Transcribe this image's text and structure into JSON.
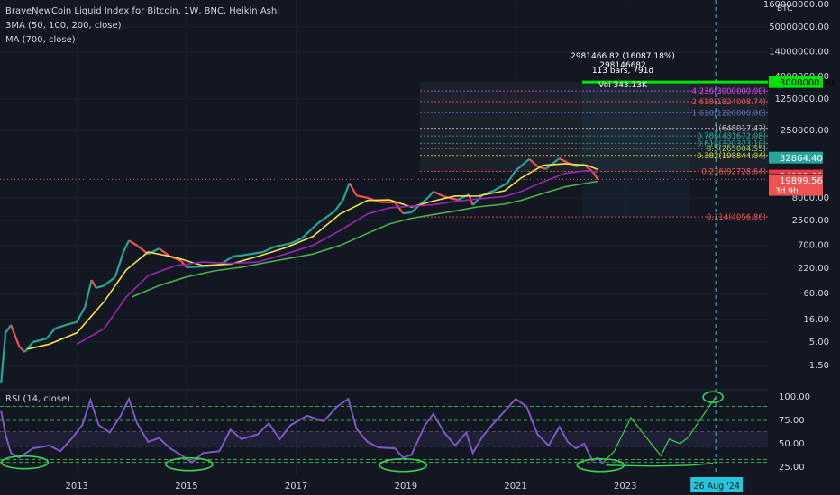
{
  "header": {
    "title": "BraveNewCoin Liquid Index for Bitcoin, 1W, BNC, Heikin Ashi",
    "indicator_3ma": "3MA (50, 100, 200, close)",
    "indicator_ma": "MA (700, close)",
    "currency": "BTC"
  },
  "measure": {
    "line1": "2981466.82 (16087.18%) 298146682",
    "line2": "113 bars, 791d",
    "line3": "Vol 343.13K"
  },
  "colors": {
    "background": "#131722",
    "up": "#ef5350",
    "down": "#26a69a",
    "ma50": "#f2e34b",
    "ma100": "#9c27b0",
    "ma200": "#4caf50",
    "ma700": "#4caf50",
    "rsi": "#7e57c2",
    "target": "#00e600",
    "annotation": "#39d353",
    "date_marker": "#26c6da"
  },
  "chart_data": [
    {
      "type": "line",
      "scale": "log",
      "x_ticks": [
        "2013",
        "2015",
        "2017",
        "2019",
        "2021",
        "2023"
      ],
      "y_ticks": [
        "160000000.00",
        "50000000.00",
        "14000000.00",
        "4000000.00",
        "1250000.00",
        "250000.00",
        "8000.00",
        "2500.00",
        "700.00",
        "220.00",
        "60.00",
        "16.00",
        "5.00",
        "1.50"
      ],
      "price_labels": [
        {
          "text": "3000000.00",
          "value": 3000000,
          "bg": "#00e600",
          "fg": "#000000"
        },
        {
          "text": "32864.40",
          "value": 32864.4,
          "bg": "#26a69a",
          "fg": "#ffffff"
        },
        {
          "text": "28911.50",
          "value": 28911.5,
          "bg": "#131722",
          "fg": "#ffffff"
        },
        {
          "text": "24958.60",
          "value": 24958.6,
          "bg": "#f23645",
          "fg": "#ffffff"
        },
        {
          "text": "20546.09",
          "value": 20546.09,
          "bg": "#131722",
          "fg": "#ffffff"
        },
        {
          "text": "19899.56",
          "value": 19899.56,
          "bg": "#ef5350",
          "fg": "#ffffff",
          "sub": "3d 9h"
        }
      ],
      "fib_levels": [
        {
          "label": "4.236(3000000.00)",
          "value": 1900000
        },
        {
          "label": "2.618(1824008.74)",
          "value": 1100000
        },
        {
          "label": "1.618(1220000.00)",
          "value": 620000
        },
        {
          "label": "1(648017.47)",
          "value": 280000
        },
        {
          "label": "0.786(431672.08)",
          "value": 190000
        },
        {
          "label": "0.618(320373.10)",
          "value": 130000
        },
        {
          "label": "0.5(265004.55)",
          "value": 100000
        },
        {
          "label": "0.382(198844.04)",
          "value": 70000
        },
        {
          "label": "0.236(92728.64)",
          "value": 31000
        },
        {
          "label": "0.114(4056.86)",
          "value": 3000
        }
      ],
      "target_price": 3000000,
      "series": [
        {
          "key": "ma50",
          "color": "#f2e34b",
          "points": [
            [
              2012.1,
              3.5
            ],
            [
              2012.5,
              4.5
            ],
            [
              2013.0,
              8
            ],
            [
              2013.5,
              40
            ],
            [
              2013.9,
              200
            ],
            [
              2014.3,
              500
            ],
            [
              2014.8,
              380
            ],
            [
              2015.3,
              250
            ],
            [
              2015.8,
              270
            ],
            [
              2016.3,
              400
            ],
            [
              2016.8,
              620
            ],
            [
              2017.3,
              1100
            ],
            [
              2017.8,
              3500
            ],
            [
              2018.3,
              7000
            ],
            [
              2018.7,
              7200
            ],
            [
              2019.1,
              5000
            ],
            [
              2019.5,
              6800
            ],
            [
              2019.9,
              8800
            ],
            [
              2020.3,
              8700
            ],
            [
              2020.8,
              11500
            ],
            [
              2021.1,
              22000
            ],
            [
              2021.5,
              42000
            ],
            [
              2021.9,
              46000
            ],
            [
              2022.3,
              42000
            ],
            [
              2022.5,
              34000
            ]
          ]
        },
        {
          "key": "ma100",
          "color": "#9c27b0",
          "points": [
            [
              2013.0,
              4.5
            ],
            [
              2013.5,
              10
            ],
            [
              2013.9,
              50
            ],
            [
              2014.3,
              150
            ],
            [
              2014.8,
              250
            ],
            [
              2015.3,
              300
            ],
            [
              2015.8,
              280
            ],
            [
              2016.3,
              300
            ],
            [
              2016.8,
              450
            ],
            [
              2017.3,
              700
            ],
            [
              2017.8,
              1500
            ],
            [
              2018.3,
              3500
            ],
            [
              2018.7,
              4800
            ],
            [
              2019.1,
              5200
            ],
            [
              2019.5,
              5600
            ],
            [
              2019.9,
              6700
            ],
            [
              2020.3,
              7500
            ],
            [
              2020.8,
              8600
            ],
            [
              2021.1,
              11000
            ],
            [
              2021.5,
              18000
            ],
            [
              2021.9,
              28000
            ],
            [
              2022.3,
              32000
            ],
            [
              2022.5,
              30000
            ]
          ]
        },
        {
          "key": "ma200",
          "color": "#4caf50",
          "points": [
            [
              2014.0,
              50
            ],
            [
              2014.5,
              90
            ],
            [
              2015.0,
              140
            ],
            [
              2015.5,
              190
            ],
            [
              2016.0,
              230
            ],
            [
              2016.5,
              300
            ],
            [
              2016.8,
              350
            ],
            [
              2017.3,
              450
            ],
            [
              2017.8,
              700
            ],
            [
              2018.3,
              1300
            ],
            [
              2018.7,
              2100
            ],
            [
              2019.1,
              2800
            ],
            [
              2019.5,
              3400
            ],
            [
              2019.9,
              4100
            ],
            [
              2020.3,
              5000
            ],
            [
              2020.8,
              5800
            ],
            [
              2021.1,
              7000
            ],
            [
              2021.5,
              10000
            ],
            [
              2021.9,
              14000
            ],
            [
              2022.3,
              17000
            ],
            [
              2022.5,
              18500
            ]
          ]
        }
      ],
      "candle_path": [
        [
          2011.62,
          0.6
        ],
        [
          2011.7,
          8
        ],
        [
          2011.8,
          12
        ],
        [
          2011.95,
          4
        ],
        [
          2012.05,
          3
        ],
        [
          2012.2,
          5
        ],
        [
          2012.45,
          6
        ],
        [
          2012.6,
          10
        ],
        [
          2012.8,
          12
        ],
        [
          2013.0,
          14
        ],
        [
          2013.15,
          30
        ],
        [
          2013.27,
          120
        ],
        [
          2013.35,
          80
        ],
        [
          2013.5,
          90
        ],
        [
          2013.7,
          140
        ],
        [
          2013.85,
          500
        ],
        [
          2013.95,
          900
        ],
        [
          2014.1,
          700
        ],
        [
          2014.3,
          450
        ],
        [
          2014.5,
          600
        ],
        [
          2014.7,
          400
        ],
        [
          2014.9,
          320
        ],
        [
          2015.0,
          230
        ],
        [
          2015.3,
          240
        ],
        [
          2015.6,
          260
        ],
        [
          2015.85,
          400
        ],
        [
          2016.0,
          420
        ],
        [
          2016.4,
          500
        ],
        [
          2016.6,
          650
        ],
        [
          2016.9,
          780
        ],
        [
          2017.1,
          1000
        ],
        [
          2017.4,
          2200
        ],
        [
          2017.7,
          4000
        ],
        [
          2017.85,
          7000
        ],
        [
          2017.97,
          17000
        ],
        [
          2018.1,
          9000
        ],
        [
          2018.3,
          8000
        ],
        [
          2018.5,
          6500
        ],
        [
          2018.8,
          6300
        ],
        [
          2018.95,
          3600
        ],
        [
          2019.1,
          3800
        ],
        [
          2019.4,
          8000
        ],
        [
          2019.5,
          11000
        ],
        [
          2019.7,
          8500
        ],
        [
          2019.95,
          7200
        ],
        [
          2020.15,
          9500
        ],
        [
          2020.22,
          5500
        ],
        [
          2020.4,
          9300
        ],
        [
          2020.6,
          11500
        ],
        [
          2020.85,
          17000
        ],
        [
          2021.0,
          32000
        ],
        [
          2021.25,
          58000
        ],
        [
          2021.4,
          40000
        ],
        [
          2021.55,
          35000
        ],
        [
          2021.8,
          60000
        ],
        [
          2021.95,
          48000
        ],
        [
          2022.1,
          40000
        ],
        [
          2022.25,
          44000
        ],
        [
          2022.42,
          29000
        ],
        [
          2022.5,
          20500
        ]
      ]
    },
    {
      "type": "line",
      "title": "RSI (14, close)",
      "y_ticks": [
        "100.00",
        "75.00",
        "50.00",
        "25.00"
      ],
      "ylim": [
        20,
        105
      ],
      "levels": [
        90,
        75,
        63,
        47,
        33,
        30
      ],
      "values": [
        [
          2011.62,
          85
        ],
        [
          2011.7,
          60
        ],
        [
          2011.8,
          40
        ],
        [
          2011.95,
          35
        ],
        [
          2012.2,
          45
        ],
        [
          2012.5,
          48
        ],
        [
          2012.7,
          42
        ],
        [
          2012.9,
          55
        ],
        [
          2013.1,
          70
        ],
        [
          2013.25,
          97
        ],
        [
          2013.4,
          70
        ],
        [
          2013.6,
          62
        ],
        [
          2013.8,
          80
        ],
        [
          2013.95,
          98
        ],
        [
          2014.1,
          72
        ],
        [
          2014.3,
          52
        ],
        [
          2014.5,
          56
        ],
        [
          2014.7,
          45
        ],
        [
          2014.9,
          38
        ],
        [
          2015.1,
          30
        ],
        [
          2015.3,
          40
        ],
        [
          2015.6,
          42
        ],
        [
          2015.8,
          65
        ],
        [
          2016.0,
          55
        ],
        [
          2016.3,
          60
        ],
        [
          2016.5,
          72
        ],
        [
          2016.7,
          55
        ],
        [
          2016.9,
          70
        ],
        [
          2017.2,
          80
        ],
        [
          2017.5,
          74
        ],
        [
          2017.75,
          90
        ],
        [
          2017.95,
          98
        ],
        [
          2018.1,
          66
        ],
        [
          2018.3,
          52
        ],
        [
          2018.5,
          46
        ],
        [
          2018.8,
          45
        ],
        [
          2018.95,
          35
        ],
        [
          2019.1,
          38
        ],
        [
          2019.35,
          70
        ],
        [
          2019.5,
          82
        ],
        [
          2019.7,
          62
        ],
        [
          2019.9,
          48
        ],
        [
          2020.1,
          62
        ],
        [
          2020.22,
          40
        ],
        [
          2020.4,
          58
        ],
        [
          2020.6,
          72
        ],
        [
          2020.85,
          88
        ],
        [
          2021.0,
          98
        ],
        [
          2021.2,
          90
        ],
        [
          2021.4,
          60
        ],
        [
          2021.6,
          48
        ],
        [
          2021.8,
          68
        ],
        [
          2021.95,
          52
        ],
        [
          2022.1,
          45
        ],
        [
          2022.25,
          50
        ],
        [
          2022.4,
          32
        ],
        [
          2022.5,
          35
        ],
        [
          2022.6,
          28
        ]
      ],
      "projection": [
        [
          2022.6,
          30
        ],
        [
          2022.8,
          42
        ],
        [
          2023.1,
          78
        ],
        [
          2023.5,
          48
        ],
        [
          2023.65,
          37
        ],
        [
          2023.8,
          55
        ],
        [
          2024.0,
          50
        ],
        [
          2024.15,
          57
        ],
        [
          2024.3,
          70
        ],
        [
          2024.55,
          92
        ],
        [
          2024.65,
          100
        ]
      ],
      "support_curve": [
        [
          2022.65,
          27
        ],
        [
          2023.5,
          26
        ],
        [
          2024.2,
          27
        ],
        [
          2024.6,
          29
        ]
      ],
      "ellipses": [
        {
          "x": 2012.05,
          "y": 30
        },
        {
          "x": 2015.05,
          "y": 28
        },
        {
          "x": 2018.95,
          "y": 27
        },
        {
          "x": 2022.55,
          "y": 27
        },
        {
          "x": 2024.6,
          "y": 100
        }
      ]
    }
  ],
  "date_marker": "26 Aug '24"
}
